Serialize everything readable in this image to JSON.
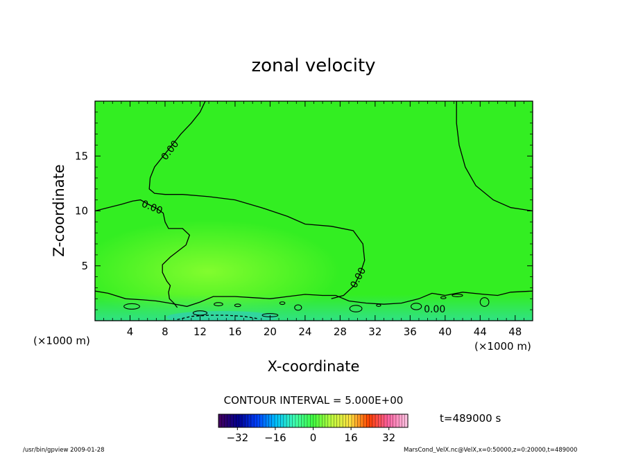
{
  "chart_data": {
    "type": "heatmap",
    "title": "zonal velocity",
    "xlabel": "X-coordinate",
    "ylabel": "Z-coordinate",
    "x_unit_left": "(×1000 m)",
    "x_unit_right": "(×1000 m)",
    "xlim": [
      0,
      50
    ],
    "ylim": [
      0,
      20
    ],
    "x_ticks": [
      4,
      8,
      12,
      16,
      20,
      24,
      28,
      32,
      36,
      40,
      44,
      48
    ],
    "y_ticks": [
      5,
      10,
      15
    ],
    "contour_interval_text": "CONTOUR INTERVAL = 5.000E+00",
    "time_text": "t=489000 s",
    "colorbar": {
      "range": [
        -40,
        40
      ],
      "ticks": [
        -32,
        -16,
        0,
        16,
        32
      ],
      "colors": [
        "#400060",
        "#000090",
        "#0040ff",
        "#00c0ff",
        "#40ffb0",
        "#40ff40",
        "#c0ff40",
        "#ffe040",
        "#ff4000",
        "#ff60a0",
        "#ffc0e0"
      ]
    },
    "contour_labels": [
      {
        "text": "0.00",
        "x": 8.6,
        "z": 15.5
      },
      {
        "text": "0.00",
        "x": 6.5,
        "z": 10.3
      },
      {
        "text": "0.00",
        "x": 30.1,
        "z": 3.9
      },
      {
        "text": "0.00",
        "x": 38.8,
        "z": 1.0
      }
    ],
    "contours": [
      {
        "level": 0,
        "points": [
          [
            12.6,
            20
          ],
          [
            12.0,
            19.0
          ],
          [
            11.0,
            18.0
          ],
          [
            9.8,
            17.0
          ],
          [
            8.8,
            16.0
          ],
          [
            7.8,
            15.0
          ],
          [
            6.8,
            14.0
          ],
          [
            6.3,
            13.0
          ],
          [
            6.2,
            12.0
          ],
          [
            6.8,
            11.6
          ],
          [
            8.0,
            11.5
          ],
          [
            10.0,
            11.5
          ],
          [
            13.0,
            11.3
          ],
          [
            16.0,
            11.0
          ],
          [
            19.0,
            10.3
          ],
          [
            22.0,
            9.5
          ],
          [
            24.0,
            8.8
          ],
          [
            27.0,
            8.6
          ],
          [
            29.5,
            8.2
          ],
          [
            30.6,
            7.0
          ],
          [
            30.8,
            5.5
          ],
          [
            30.3,
            4.3
          ],
          [
            29.6,
            3.2
          ],
          [
            28.4,
            2.3
          ],
          [
            27.0,
            2.0
          ]
        ]
      },
      {
        "level": 0,
        "points": [
          [
            0,
            10.0
          ],
          [
            1.5,
            10.3
          ],
          [
            3.0,
            10.6
          ],
          [
            4.3,
            10.9
          ],
          [
            5.2,
            11.0
          ],
          [
            6.1,
            10.6
          ],
          [
            7.1,
            10.2
          ],
          [
            7.8,
            9.8
          ],
          [
            8.0,
            9.0
          ],
          [
            8.4,
            8.4
          ],
          [
            10.0,
            8.4
          ],
          [
            10.8,
            7.8
          ],
          [
            10.4,
            6.9
          ],
          [
            8.6,
            5.8
          ],
          [
            7.7,
            5.1
          ],
          [
            7.7,
            4.4
          ],
          [
            8.2,
            3.6
          ],
          [
            8.6,
            3.2
          ],
          [
            8.4,
            2.6
          ],
          [
            8.5,
            2.0
          ],
          [
            9.0,
            1.6
          ],
          [
            9.4,
            1.2
          ]
        ]
      },
      {
        "level": 0,
        "points": [
          [
            41.3,
            20
          ],
          [
            41.3,
            18.0
          ],
          [
            41.6,
            16.0
          ],
          [
            42.3,
            14.0
          ],
          [
            43.5,
            12.3
          ],
          [
            45.5,
            11.0
          ],
          [
            47.5,
            10.3
          ],
          [
            50.0,
            10.0
          ]
        ]
      },
      {
        "level": 0,
        "points": [
          [
            0,
            2.7
          ],
          [
            1.5,
            2.5
          ],
          [
            3.5,
            2.0
          ],
          [
            5.5,
            1.9
          ],
          [
            7.0,
            1.8
          ],
          [
            8.5,
            1.6
          ],
          [
            10.5,
            1.3
          ],
          [
            12.0,
            1.7
          ],
          [
            13.5,
            2.2
          ],
          [
            16.0,
            2.2
          ],
          [
            18.0,
            2.1
          ],
          [
            20.0,
            2.0
          ],
          [
            22.0,
            2.2
          ],
          [
            24.0,
            2.4
          ],
          [
            26.0,
            2.3
          ],
          [
            27.5,
            2.3
          ],
          [
            29.0,
            1.8
          ],
          [
            31.0,
            1.6
          ],
          [
            33.0,
            1.5
          ],
          [
            35.0,
            1.6
          ],
          [
            37.0,
            2.0
          ],
          [
            38.5,
            2.5
          ],
          [
            40.0,
            2.3
          ],
          [
            42.0,
            2.6
          ],
          [
            44.5,
            2.4
          ],
          [
            46.0,
            2.3
          ],
          [
            47.5,
            2.6
          ],
          [
            50.0,
            2.7
          ]
        ]
      },
      {
        "level": -5,
        "points": [
          [
            9.4,
            0.1
          ],
          [
            11.0,
            0.4
          ],
          [
            13.0,
            0.5
          ],
          [
            15.0,
            0.5
          ],
          [
            17.0,
            0.4
          ],
          [
            18.5,
            0.2
          ]
        ]
      }
    ]
  },
  "footer": {
    "left": "/usr/bin/gpview   2009-01-28",
    "right": "MarsCond_VelX.nc@VelX,x=0:50000,z=0:20000,t=489000"
  }
}
